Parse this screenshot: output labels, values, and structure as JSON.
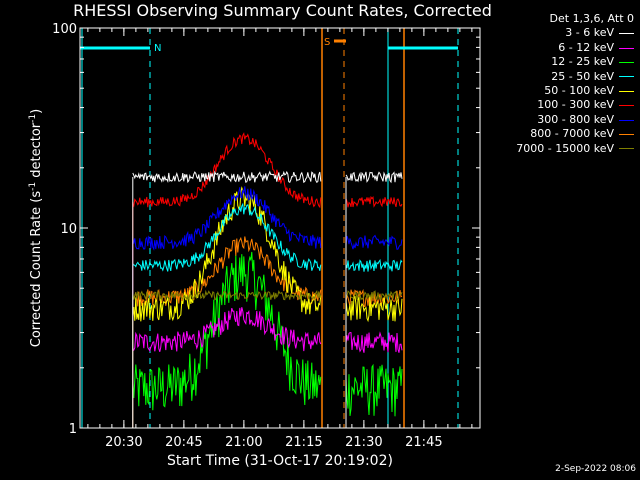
{
  "colors": {
    "background": "#000000",
    "axes": "#ffffff",
    "attenuator": "#00ffff",
    "saa": "#ff8000",
    "night_dashed": "#00ffff"
  },
  "chart_data": {
    "type": "line",
    "title": "RHESSI Observing Summary Count Rates, Corrected",
    "xlabel": "Start Time (31-Oct-17 20:19:02)",
    "ylabel_main": "Corrected Count Rate (s",
    "ylabel_sup1": "-1",
    "ylabel_mid": " detector",
    "ylabel_sup2": "-1",
    "ylabel_end": ")",
    "date_stamp": "2-Sep-2022 08:06",
    "x_unit": "minutes since 20:19:02",
    "xlim": [
      0,
      100
    ],
    "ylim": [
      1,
      100
    ],
    "y_scale": "log",
    "y_ticks": [
      {
        "value": 1,
        "label": "1"
      },
      {
        "value": 10,
        "label": "10"
      },
      {
        "value": 100,
        "label": "100"
      }
    ],
    "x_ticks": [
      {
        "value": 10.97,
        "label": "20:30"
      },
      {
        "value": 25.97,
        "label": "20:45"
      },
      {
        "value": 40.97,
        "label": "21:00"
      },
      {
        "value": 55.97,
        "label": "21:15"
      },
      {
        "value": 70.97,
        "label": "21:30"
      },
      {
        "value": 85.97,
        "label": "21:45"
      }
    ],
    "x_minor_step": 3,
    "legend_header": "Det 1,3,6, Att 0",
    "data_gap": [
      60.3,
      66.5
    ],
    "series": [
      {
        "name": "3 - 6 keV",
        "color": "#ffffff",
        "base": 18,
        "noise": 0.06,
        "peak": 0
      },
      {
        "name": "6 - 12 keV",
        "color": "#ff00ff",
        "base": 2.7,
        "noise": 0.12,
        "peak": 1.0
      },
      {
        "name": "12 - 25 keV",
        "color": "#00ff00",
        "base": 1.6,
        "noise": 0.3,
        "peak": 4.5
      },
      {
        "name": "25 - 50 keV",
        "color": "#00ffff",
        "base": 6.5,
        "noise": 0.07,
        "peak": 6.0
      },
      {
        "name": "50 - 100 keV",
        "color": "#ffff00",
        "base": 4.0,
        "noise": 0.15,
        "peak": 10.0
      },
      {
        "name": "100 - 300 keV",
        "color": "#ff0000",
        "base": 13.5,
        "noise": 0.06,
        "peak": 14.5
      },
      {
        "name": "300 - 800 keV",
        "color": "#0000ff",
        "base": 8.5,
        "noise": 0.08,
        "peak": 6.5
      },
      {
        "name": "800 - 7000 keV",
        "color": "#ff8000",
        "base": 4.5,
        "noise": 0.1,
        "peak": 3.8
      },
      {
        "name": "7000 - 15000 keV",
        "color": "#808000",
        "base": 4.6,
        "noise": 0.05,
        "peak": 0
      }
    ],
    "segments": [
      [
        13.2,
        60.3
      ],
      [
        66.5,
        80.5
      ]
    ],
    "peak_center": 41,
    "peak_width": 8,
    "annotations": {
      "attenuator_label": "N",
      "saa_label": "S",
      "attenuator_bars": [
        [
          0,
          17.5
        ],
        [
          77,
          94.5
        ]
      ],
      "saa_bar": [
        63.5,
        66.5
      ],
      "night_dashed_x": [
        17.5,
        94.5
      ],
      "saa_dashed_x": [
        66
      ],
      "attenuator_solid_x": [
        0.5,
        77
      ],
      "saa_solid_x": [
        60.5,
        81
      ]
    }
  }
}
